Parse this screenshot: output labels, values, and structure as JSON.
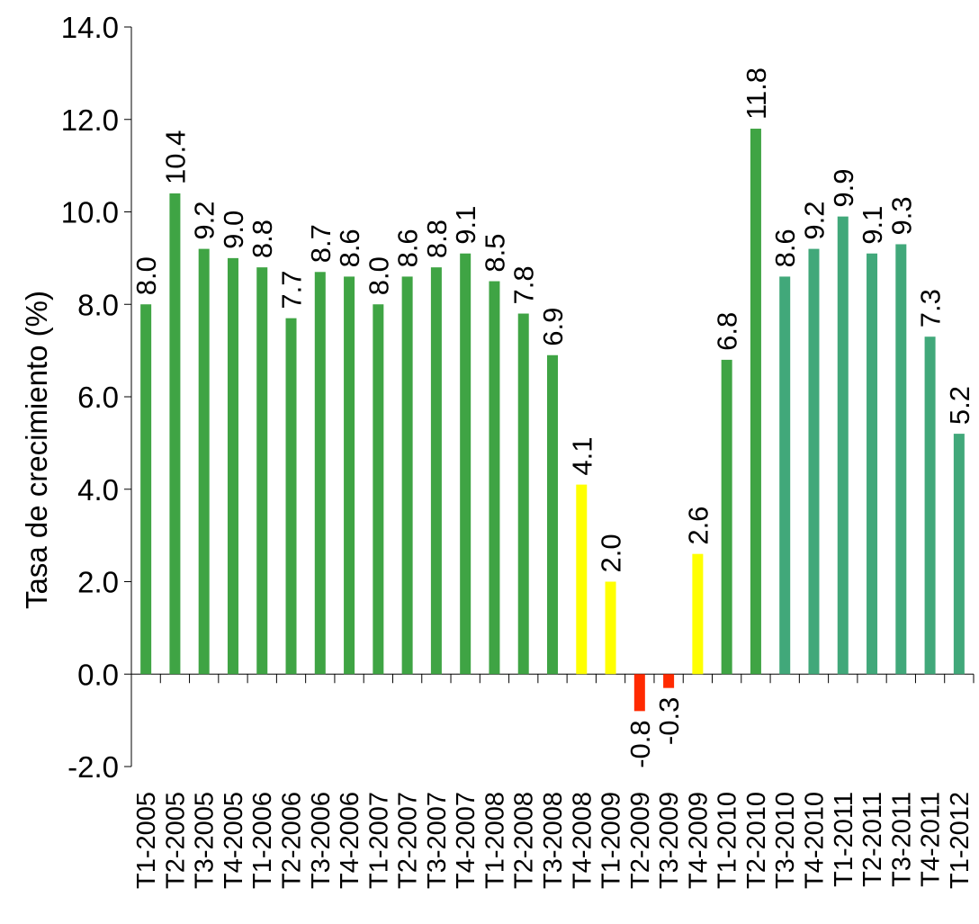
{
  "chart_data": {
    "type": "bar",
    "ylabel": "Tasa de crecimiento (%)",
    "ylim": [
      -2.0,
      14.0
    ],
    "yticks": [
      "-2.0",
      "0.0",
      "2.0",
      "4.0",
      "6.0",
      "8.0",
      "10.0",
      "12.0",
      "14.0"
    ],
    "grid": false,
    "categories": [
      "T1-2005",
      "T2-2005",
      "T3-2005",
      "T4-2005",
      "T1-2006",
      "T2-2006",
      "T3-2006",
      "T4-2006",
      "T1-2007",
      "T2-2007",
      "T3-2007",
      "T4-2007",
      "T1-2008",
      "T2-2008",
      "T3-2008",
      "T4-2008",
      "T1-2009",
      "T2-2009",
      "T3-2009",
      "T4-2009",
      "T1-2010",
      "T2-2010",
      "T3-2010",
      "T4-2010",
      "T1-2011",
      "T2-2011",
      "T3-2011",
      "T4-2011",
      "T1-2012"
    ],
    "values": [
      8.0,
      10.4,
      9.2,
      9.0,
      8.8,
      7.7,
      8.7,
      8.6,
      8.0,
      8.6,
      8.8,
      9.1,
      8.5,
      7.8,
      6.9,
      4.1,
      2.0,
      -0.8,
      -0.3,
      2.6,
      6.8,
      11.8,
      8.6,
      9.2,
      9.9,
      9.1,
      9.3,
      7.3,
      5.2
    ],
    "labels": [
      "8.0",
      "10.4",
      "9.2",
      "9.0",
      "8.8",
      "7.7",
      "8.7",
      "8.6",
      "8.0",
      "8.6",
      "8.8",
      "9.1",
      "8.5",
      "7.8",
      "6.9",
      "4.1",
      "2.0",
      "-0.8",
      "-0.3",
      "2.6",
      "6.8",
      "11.8",
      "8.6",
      "9.2",
      "9.9",
      "9.1",
      "9.3",
      "7.3",
      "5.2"
    ],
    "bar_colors": [
      "#3fa444",
      "#3fa444",
      "#3fa444",
      "#3fa444",
      "#3fa444",
      "#3fa444",
      "#3fa444",
      "#3fa444",
      "#3fa444",
      "#3fa444",
      "#3fa444",
      "#3fa444",
      "#3fa444",
      "#3fa444",
      "#3fa444",
      "#ffff00",
      "#ffff00",
      "#ff2a00",
      "#ff2a00",
      "#ffff00",
      "#3fa444",
      "#3fa444",
      "#41a87a",
      "#41a87a",
      "#41a87a",
      "#41a87a",
      "#41a87a",
      "#41a87a",
      "#41a87a"
    ]
  }
}
